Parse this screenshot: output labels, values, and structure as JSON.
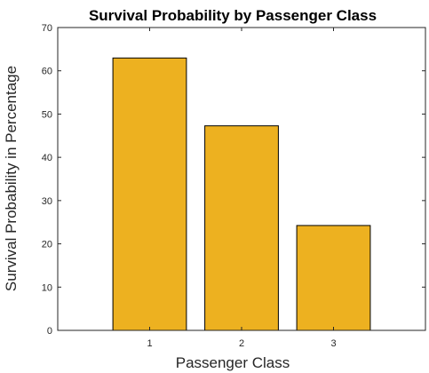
{
  "chart_data": {
    "type": "bar",
    "title": "Survival Probability by Passenger Class",
    "xlabel": "Passenger Class",
    "ylabel": "Survival Probability in Percentage",
    "categories": [
      "1",
      "2",
      "3"
    ],
    "x": [
      1,
      2,
      3
    ],
    "values": [
      62.96,
      47.28,
      24.24
    ],
    "xlim": [
      0,
      4
    ],
    "ylim": [
      0,
      70
    ],
    "yticks": [
      0,
      10,
      20,
      30,
      40,
      50,
      60,
      70
    ],
    "grid": false,
    "bar_color": "#EDB120",
    "bar_edge_color": "#000000"
  }
}
